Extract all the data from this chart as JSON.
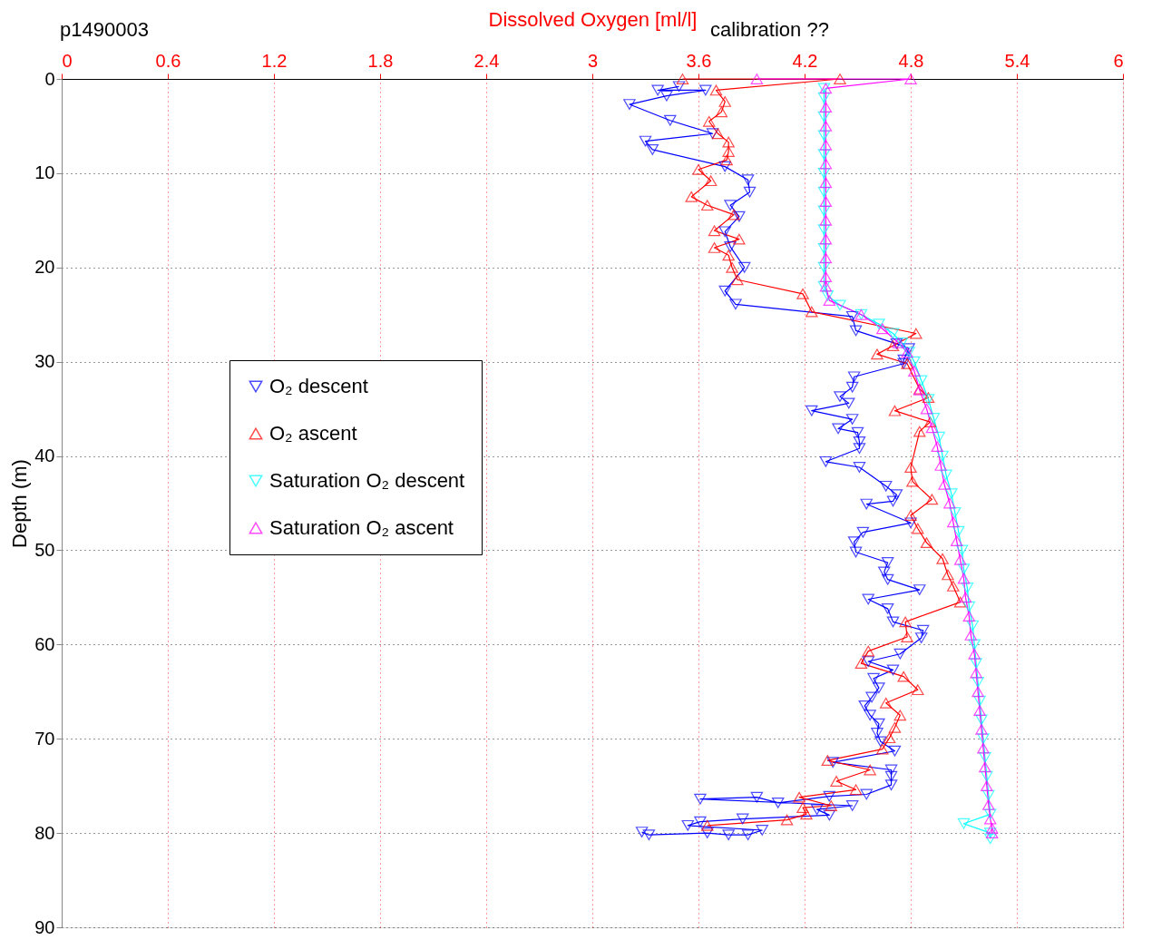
{
  "chart_data": {
    "type": "line",
    "title": "p1490003",
    "xlabel": "Dissolved Oxygen [ml/l]",
    "ylabel": "Depth (m)",
    "annotations": [
      "calibration ??"
    ],
    "xlim": [
      0,
      6
    ],
    "xticks": [
      0,
      0.6,
      1.2,
      1.8,
      2.4,
      3,
      3.6,
      4.2,
      4.8,
      5.4,
      6
    ],
    "ylim": [
      90,
      0
    ],
    "yticks": [
      0,
      10,
      20,
      30,
      40,
      50,
      60,
      70,
      80,
      90
    ],
    "grid": true,
    "legend": "left",
    "line_style": "solid",
    "series": [
      {
        "name": "O₂ descent",
        "color": "#0000ff",
        "marker": "triangle-down",
        "x": [
          3.49,
          3.37,
          3.64,
          3.42,
          3.21,
          3.44,
          3.68,
          3.3,
          3.34,
          3.75,
          3.88,
          3.89,
          3.78,
          3.83,
          3.75,
          3.78,
          3.86,
          3.75,
          3.81,
          4.47,
          4.49,
          4.72,
          4.79,
          4.76,
          4.76,
          4.48,
          4.47,
          4.4,
          4.45,
          4.24,
          4.47,
          4.39,
          4.5,
          4.51,
          4.51,
          4.32,
          4.51,
          4.66,
          4.72,
          4.7,
          4.55,
          4.8,
          4.53,
          4.48,
          4.49,
          4.67,
          4.65,
          4.67,
          4.85,
          4.56,
          4.67,
          4.7,
          4.87,
          4.86,
          4.74,
          4.56,
          4.7,
          4.59,
          4.62,
          4.58,
          4.54,
          4.57,
          4.62,
          4.61,
          4.63,
          4.71,
          4.36,
          4.69,
          4.69,
          4.69,
          4.55,
          4.34,
          4.05,
          3.93,
          3.61,
          4.47,
          4.27,
          4.34,
          3.85,
          3.61,
          3.54,
          3.96,
          3.88,
          3.77,
          3.65,
          3.32,
          3.28
        ],
        "values": [
          0.8,
          1.2,
          1.2,
          1.8,
          2.7,
          4.4,
          5.8,
          6.6,
          7.5,
          9.3,
          10.7,
          12.0,
          13.4,
          14.6,
          16.2,
          17.8,
          20.0,
          22.5,
          23.9,
          25.2,
          26.7,
          28.1,
          28.6,
          29.8,
          30.2,
          31.6,
          32.7,
          33.7,
          34.4,
          35.2,
          36.1,
          37.1,
          37.5,
          38.5,
          39.2,
          40.6,
          41.2,
          43.2,
          44.1,
          44.8,
          45.1,
          47.1,
          48.1,
          49.1,
          50.2,
          51.3,
          52.3,
          53.1,
          54.2,
          55.2,
          56.2,
          57.6,
          58.5,
          59.3,
          61.0,
          61.8,
          62.7,
          63.6,
          64.6,
          65.6,
          66.5,
          67.5,
          68.4,
          69.4,
          70.3,
          71.3,
          72.5,
          73.3,
          74.0,
          74.9,
          75.9,
          76.1,
          76.8,
          76.2,
          76.4,
          77.1,
          77.5,
          78.1,
          78.5,
          78.8,
          79.2,
          79.7,
          80.2,
          80.2,
          80.0,
          80.2,
          79.9
        ]
      },
      {
        "name": "O₂ ascent",
        "color": "#ff0000",
        "marker": "triangle",
        "x": [
          3.51,
          4.4,
          3.7,
          3.75,
          3.73,
          3.66,
          3.71,
          3.77,
          3.77,
          3.76,
          3.6,
          3.67,
          3.56,
          3.65,
          3.8,
          3.69,
          3.83,
          3.69,
          3.77,
          3.79,
          3.82,
          4.19,
          4.24,
          4.83,
          4.7,
          4.61,
          4.78,
          4.85,
          4.9,
          4.71,
          4.91,
          4.85,
          4.8,
          4.81,
          4.92,
          4.8,
          4.84,
          4.89,
          4.98,
          5.01,
          5.04,
          5.08,
          4.77,
          4.78,
          4.56,
          4.52,
          4.76,
          4.84,
          4.66,
          4.74,
          4.71,
          4.68,
          4.64,
          4.33,
          4.57,
          4.38,
          4.49,
          4.17,
          4.35,
          4.19,
          4.21,
          4.1,
          3.65
        ],
        "values": [
          0,
          0,
          1.2,
          2.4,
          3.5,
          4.5,
          5.8,
          6.7,
          7.7,
          8.6,
          9.6,
          10.8,
          12.5,
          13.4,
          14.4,
          16.1,
          17.0,
          17.9,
          18.7,
          20.0,
          21.3,
          22.8,
          24.7,
          27.0,
          28.3,
          29.2,
          30.2,
          32.9,
          33.8,
          35.2,
          36.4,
          37.4,
          41.2,
          42.7,
          44.6,
          46.3,
          47.7,
          49.2,
          50.9,
          52.6,
          53.8,
          55.5,
          57.6,
          59.2,
          60.7,
          62.0,
          63.4,
          64.8,
          66.2,
          67.5,
          68.8,
          69.9,
          71.1,
          72.3,
          73.3,
          74.5,
          75.4,
          76.2,
          77.1,
          77.3,
          78.0,
          78.6,
          79.2
        ]
      },
      {
        "name": "Saturation O₂ descent",
        "color": "#00ffff",
        "marker": "triangle-down",
        "x": [
          4.31,
          4.31,
          4.31,
          4.31,
          4.31,
          4.31,
          4.31,
          4.31,
          4.31,
          4.31,
          4.31,
          4.31,
          4.33,
          4.4,
          4.52,
          4.62,
          4.7,
          4.75,
          4.79,
          4.82,
          4.86,
          4.9,
          4.93,
          4.96,
          4.98,
          5.0,
          5.03,
          5.05,
          5.07,
          5.09,
          5.1,
          5.12,
          5.13,
          5.15,
          5.16,
          5.17,
          5.18,
          5.19,
          5.2,
          5.21,
          5.22,
          5.23,
          5.24,
          5.25,
          5.1,
          5.25,
          5.25
        ],
        "values": [
          1,
          2,
          4,
          6,
          8,
          10,
          12,
          14,
          16,
          18,
          20,
          22,
          23,
          24,
          25,
          26,
          27,
          28,
          29,
          30,
          32,
          34,
          36,
          38,
          40,
          42,
          44,
          46,
          48,
          50,
          52,
          54,
          56,
          58,
          60,
          62,
          64,
          66,
          68,
          70,
          72,
          74,
          76,
          78,
          79,
          80,
          80.6
        ]
      },
      {
        "name": "Saturation O₂ ascent",
        "color": "#ff00ff",
        "marker": "triangle",
        "x": [
          3.93,
          4.8,
          4.32,
          4.32,
          4.32,
          4.32,
          4.32,
          4.32,
          4.32,
          4.32,
          4.32,
          4.32,
          4.32,
          4.32,
          4.34,
          4.52,
          4.64,
          4.73,
          4.78,
          4.82,
          4.85,
          4.89,
          4.92,
          4.95,
          4.97,
          4.99,
          5.02,
          5.04,
          5.06,
          5.08,
          5.1,
          5.11,
          5.13,
          5.14,
          5.16,
          5.17,
          5.18,
          5.19,
          5.2,
          5.21,
          5.22,
          5.23,
          5.24,
          5.25,
          5.26,
          5.26
        ],
        "values": [
          0,
          0,
          1,
          3,
          5,
          7,
          9,
          11,
          13,
          15,
          17,
          19,
          21,
          22,
          23.5,
          25,
          26.5,
          28,
          29,
          31,
          33,
          35,
          37,
          39,
          41,
          43,
          45,
          47,
          49,
          51,
          53,
          55,
          57,
          59,
          61,
          63,
          65,
          67,
          69,
          71,
          73,
          75,
          77,
          78.5,
          79.5,
          80
        ]
      }
    ]
  }
}
